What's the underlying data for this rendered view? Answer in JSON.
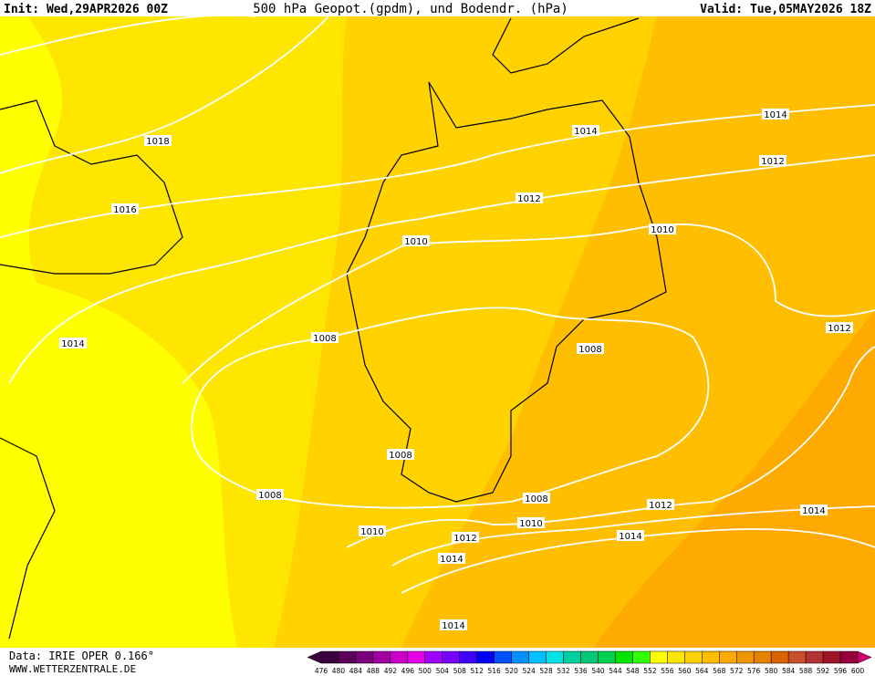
{
  "header": {
    "init": "Init: Wed,29APR2026 00Z",
    "title": "500 hPa Geopot.(gpdm), und Bodendr. (hPa)",
    "valid": "Valid: Tue,05MAY2026 18Z"
  },
  "isobars": [
    "1018",
    "1016",
    "1014",
    "1014",
    "1014",
    "1012",
    "1012",
    "1010",
    "1010",
    "1008",
    "1008",
    "1012",
    "1008",
    "1008",
    "1008",
    "1010",
    "1010",
    "1012",
    "1012",
    "1014",
    "1014",
    "1014",
    "1014"
  ],
  "footer": {
    "data": "Data: IRIE OPER 0.166°",
    "site": "WWW.WETTERZENTRALE.DE"
  },
  "legend": {
    "labels": [
      476,
      480,
      484,
      488,
      492,
      496,
      500,
      504,
      508,
      512,
      516,
      520,
      524,
      528,
      532,
      536,
      540,
      544,
      548,
      552,
      556,
      560,
      564,
      568,
      572,
      576,
      580,
      584,
      588,
      592,
      596,
      600
    ],
    "colors": [
      "#3c0040",
      "#5a005a",
      "#78007a",
      "#a000a0",
      "#c800c8",
      "#e600e6",
      "#a000ff",
      "#7800ff",
      "#4000ff",
      "#0000ff",
      "#0050ff",
      "#0090ff",
      "#00c0ff",
      "#00e6e6",
      "#00d0a0",
      "#00c878",
      "#00d050",
      "#00e600",
      "#32ff00",
      "#ffff00",
      "#ffe600",
      "#ffd200",
      "#ffbe00",
      "#ffaa00",
      "#f09600",
      "#e68200",
      "#dc6400",
      "#c85028",
      "#b43232",
      "#a01428",
      "#96003c"
    ]
  }
}
